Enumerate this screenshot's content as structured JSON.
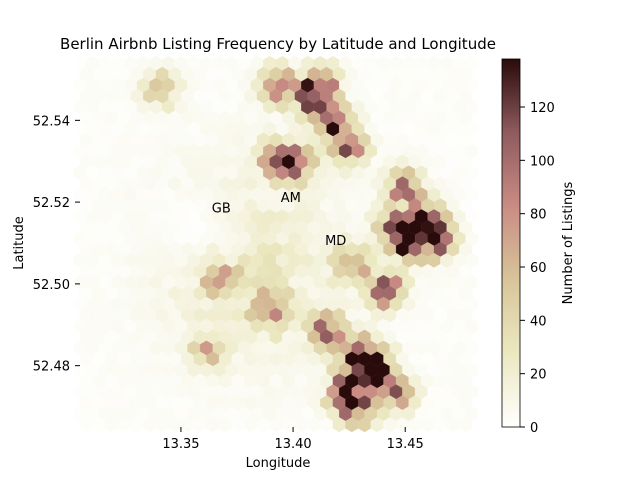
{
  "chart_data": {
    "type": "heatmap",
    "subtype": "hexbin",
    "title": "Berlin Airbnb Listing Frequency by Latitude and Longitude",
    "xlabel": "Longitude",
    "ylabel": "Latitude",
    "xlim": [
      13.305,
      13.482
    ],
    "ylim": [
      52.465,
      52.555
    ],
    "xticks": [
      13.35,
      13.4,
      13.45
    ],
    "xtick_labels": [
      "13.35",
      "13.40",
      "13.45"
    ],
    "yticks": [
      52.48,
      52.5,
      52.52,
      52.54
    ],
    "ytick_labels": [
      "52.48",
      "52.50",
      "52.52",
      "52.54"
    ],
    "colorbar": {
      "label": "Number of Listings",
      "range": [
        0,
        138
      ],
      "ticks": [
        0,
        20,
        40,
        60,
        80,
        100,
        120
      ],
      "tick_labels": [
        "0",
        "20",
        "40",
        "60",
        "80",
        "100",
        "120"
      ],
      "colors": [
        "#ffffff",
        "#ebe8c0",
        "#d8c59a",
        "#c98c84",
        "#8f5b5e",
        "#2a0b0b"
      ]
    },
    "annotations": [
      {
        "text": "GB",
        "x": 13.368,
        "y": 52.5175
      },
      {
        "text": "AM",
        "x": 13.399,
        "y": 52.52
      },
      {
        "text": "MD",
        "x": 13.419,
        "y": 52.5095
      }
    ],
    "hotspots": [
      {
        "x": 13.452,
        "y": 52.5105,
        "value": 138
      },
      {
        "x": 13.437,
        "y": 52.4785,
        "value": 135
      },
      {
        "x": 13.464,
        "y": 52.5105,
        "value": 110
      },
      {
        "x": 13.46,
        "y": 52.5155,
        "value": 105
      },
      {
        "x": 13.428,
        "y": 52.4785,
        "value": 110
      },
      {
        "x": 13.416,
        "y": 52.4885,
        "value": 100
      },
      {
        "x": 13.442,
        "y": 52.4985,
        "value": 110
      },
      {
        "x": 13.412,
        "y": 52.5485,
        "value": 110
      },
      {
        "x": 13.393,
        "y": 52.5485,
        "value": 95
      },
      {
        "x": 13.42,
        "y": 52.5385,
        "value": 100
      },
      {
        "x": 13.423,
        "y": 52.4725,
        "value": 100
      },
      {
        "x": 13.433,
        "y": 52.4825,
        "value": 110
      },
      {
        "x": 13.445,
        "y": 52.5135,
        "value": 95
      },
      {
        "x": 13.45,
        "y": 52.5235,
        "value": 90
      },
      {
        "x": 13.426,
        "y": 52.5045,
        "value": 85
      },
      {
        "x": 13.39,
        "y": 52.4935,
        "value": 85
      },
      {
        "x": 13.402,
        "y": 52.5295,
        "value": 90
      },
      {
        "x": 13.393,
        "y": 52.5305,
        "value": 85
      },
      {
        "x": 13.425,
        "y": 52.5335,
        "value": 80
      },
      {
        "x": 13.408,
        "y": 52.5445,
        "value": 80
      },
      {
        "x": 13.446,
        "y": 52.4735,
        "value": 80
      },
      {
        "x": 13.43,
        "y": 52.4695,
        "value": 80
      },
      {
        "x": 13.363,
        "y": 52.4835,
        "value": 60
      },
      {
        "x": 13.368,
        "y": 52.5005,
        "value": 60
      },
      {
        "x": 13.341,
        "y": 52.5475,
        "value": 55
      }
    ]
  }
}
